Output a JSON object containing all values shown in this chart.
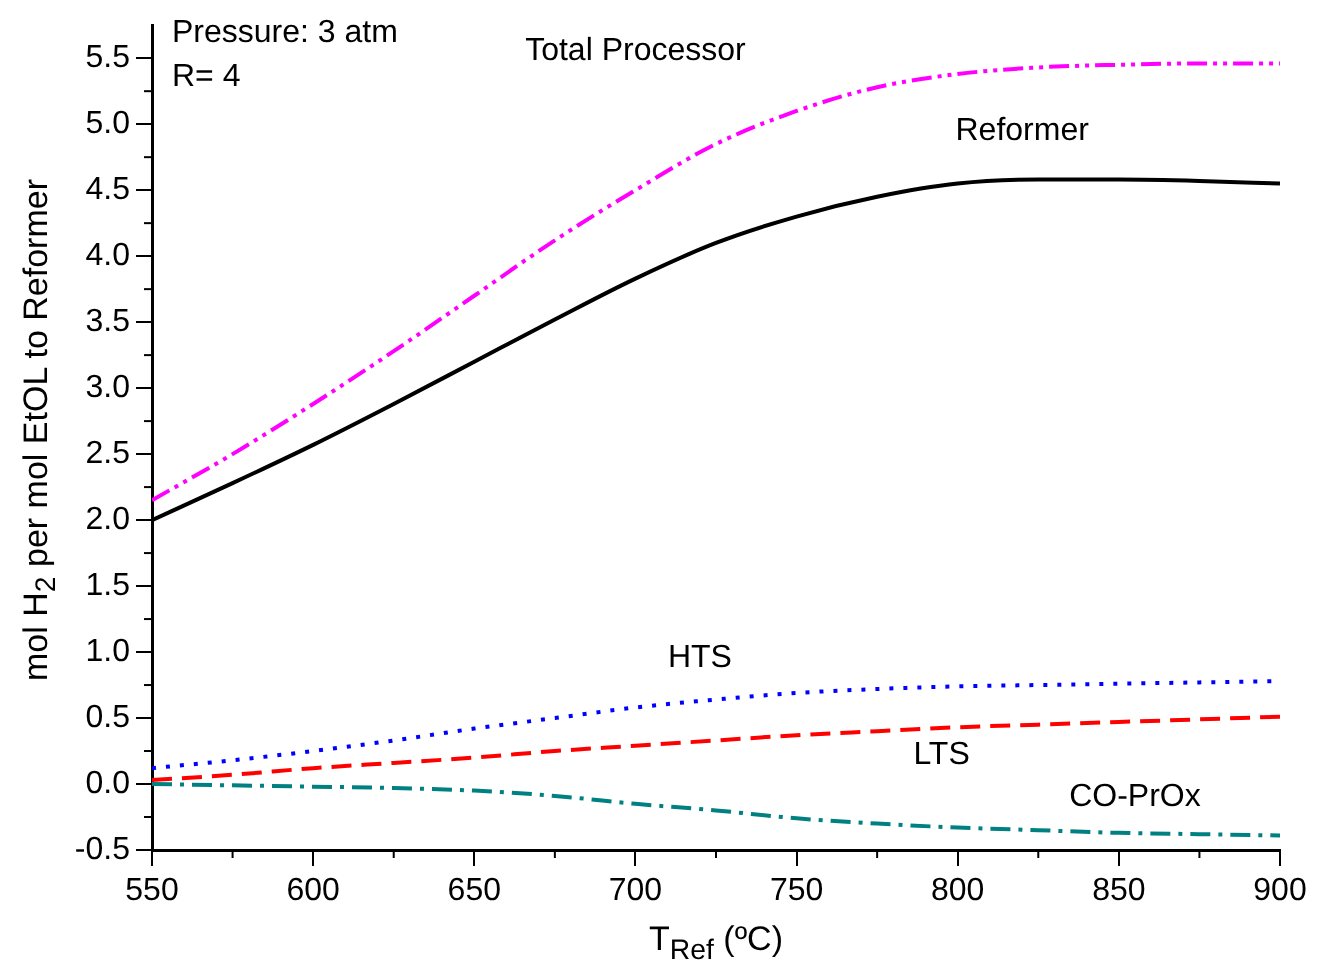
{
  "chart_data": {
    "type": "line",
    "xlabel": "T$_{Ref}$ (ºC)",
    "ylabel": "mol H$_{2}$ per mol EtOL to Reformer",
    "annotations": [
      "Pressure: 3 atm",
      "R= 4"
    ],
    "xlim": [
      550,
      900
    ],
    "xticks": [
      550,
      600,
      650,
      700,
      750,
      800,
      850,
      900
    ],
    "ylim": [
      -0.5,
      5.75
    ],
    "yticks": [
      {
        "value": -0.5,
        "label": "-0.5"
      },
      {
        "value": 0,
        "label": "0.0"
      },
      {
        "value": 0.5,
        "label": "0.5"
      },
      {
        "value": 1,
        "label": "1.0"
      },
      {
        "value": 1.5,
        "label": "1.5"
      },
      {
        "value": 2,
        "label": "2.0"
      },
      {
        "value": 2.5,
        "label": "2.5"
      },
      {
        "value": 3,
        "label": "3.0"
      },
      {
        "value": 3.5,
        "label": "3.5"
      },
      {
        "value": 4,
        "label": "4.0"
      },
      {
        "value": 4.5,
        "label": "4.5"
      },
      {
        "value": 5,
        "label": "5.0"
      },
      {
        "value": 5.5,
        "label": "5.5"
      }
    ],
    "grid": false,
    "legend": false,
    "marker": "none",
    "x": [
      550,
      575,
      600,
      625,
      650,
      675,
      700,
      725,
      750,
      775,
      800,
      825,
      850,
      875,
      900
    ],
    "series": [
      {
        "name": "Total Processor",
        "color": "#ff00ff",
        "line_style": "dashdotdot",
        "values": [
          2.15,
          2.5,
          2.88,
          3.28,
          3.7,
          4.12,
          4.5,
          4.85,
          5.1,
          5.28,
          5.38,
          5.43,
          5.45,
          5.46,
          5.46
        ]
      },
      {
        "name": "Reformer",
        "color": "#000000",
        "line_style": "solid",
        "values": [
          2.0,
          2.28,
          2.57,
          2.88,
          3.2,
          3.52,
          3.83,
          4.1,
          4.3,
          4.45,
          4.55,
          4.58,
          4.58,
          4.57,
          4.55
        ]
      },
      {
        "name": "HTS",
        "color": "#0000ff",
        "line_style": "dotted",
        "values": [
          0.12,
          0.18,
          0.25,
          0.33,
          0.42,
          0.5,
          0.58,
          0.64,
          0.69,
          0.72,
          0.74,
          0.75,
          0.76,
          0.77,
          0.78
        ]
      },
      {
        "name": "LTS",
        "color": "#ff0000",
        "line_style": "dashed",
        "values": [
          0.03,
          0.07,
          0.12,
          0.16,
          0.2,
          0.25,
          0.29,
          0.33,
          0.37,
          0.4,
          0.43,
          0.45,
          0.47,
          0.49,
          0.51
        ]
      },
      {
        "name": "CO-PrOx",
        "color": "#008080",
        "line_style": "dashdot",
        "values": [
          0,
          -0.01,
          -0.02,
          -0.03,
          -0.05,
          -0.09,
          -0.15,
          -0.2,
          -0.26,
          -0.3,
          -0.33,
          -0.35,
          -0.37,
          -0.38,
          -0.39
        ]
      }
    ]
  }
}
